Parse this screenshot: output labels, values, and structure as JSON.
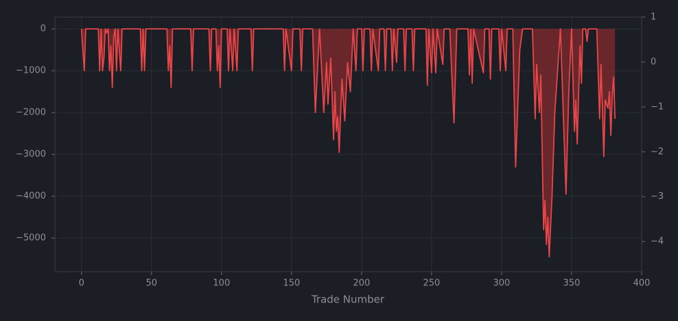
{
  "chart_data": {
    "type": "area",
    "x_label": "Trade Number",
    "color": "#e8474a",
    "fill_color": "#8a2a2e",
    "grid": true,
    "xlim": [
      -19,
      400
    ],
    "xticks": [
      0,
      50,
      100,
      150,
      200,
      250,
      300,
      350,
      400
    ],
    "ylim": [
      -5800,
      280
    ],
    "yticks": [
      {
        "value": 0,
        "label": "0"
      },
      {
        "value": -1000,
        "label": "−1000"
      },
      {
        "value": -2000,
        "label": "−2000"
      },
      {
        "value": -3000,
        "label": "−3000"
      },
      {
        "value": -4000,
        "label": "−4000"
      },
      {
        "value": -5000,
        "label": "−5000"
      }
    ],
    "y2lim": [
      -4.67,
      1
    ],
    "y2ticks": [
      1,
      0,
      {
        "value": -1,
        "label": "−1"
      },
      {
        "value": -2,
        "label": "−2"
      },
      {
        "value": -3,
        "label": "−3"
      },
      {
        "value": -4,
        "label": "−4"
      }
    ],
    "x": [
      0,
      2,
      3,
      12,
      13,
      14,
      15,
      16,
      17,
      18,
      19,
      20,
      21,
      22,
      23,
      24,
      25,
      26,
      28,
      29,
      42,
      43,
      44,
      45,
      46,
      61,
      62,
      63,
      64,
      65,
      78,
      79,
      80,
      91,
      92,
      93,
      96,
      97,
      98,
      99,
      100,
      104,
      105,
      106,
      108,
      109,
      111,
      112,
      121,
      122,
      123,
      144,
      145,
      146,
      150,
      151,
      156,
      157,
      158,
      165,
      167,
      170,
      173,
      175,
      176,
      178,
      180,
      181,
      182,
      183,
      184,
      186,
      188,
      190,
      192,
      194,
      196,
      197,
      200,
      201,
      202,
      206,
      207,
      208,
      212,
      213,
      216,
      217,
      218,
      221,
      222,
      223,
      225,
      226,
      230,
      231,
      232,
      236,
      237,
      238,
      246,
      247,
      248,
      250,
      251,
      253,
      254,
      258,
      259,
      263,
      266,
      268,
      276,
      277,
      278,
      279,
      280,
      287,
      288,
      291,
      292,
      293,
      298,
      299,
      300,
      303,
      304,
      308,
      310,
      313,
      315,
      322,
      324,
      325,
      327,
      328,
      330,
      331,
      332,
      333,
      334,
      336,
      338,
      342,
      346,
      348,
      350,
      352,
      353,
      354,
      356,
      357,
      358,
      360,
      361,
      362,
      368,
      370,
      371,
      373,
      374,
      376,
      377,
      378,
      379,
      380,
      381
    ],
    "values": [
      0,
      -1000,
      0,
      0,
      -1000,
      0,
      -1000,
      -700,
      0,
      -100,
      0,
      -1000,
      -400,
      -1400,
      -200,
      0,
      -1000,
      0,
      -1000,
      0,
      0,
      -1000,
      0,
      -1000,
      0,
      0,
      -1000,
      -400,
      -1400,
      0,
      0,
      -1000,
      0,
      0,
      -1000,
      0,
      0,
      -1000,
      -400,
      -1400,
      0,
      0,
      -1000,
      0,
      -1000,
      0,
      -1000,
      0,
      0,
      -1000,
      0,
      0,
      -1000,
      0,
      -1000,
      0,
      0,
      -1000,
      0,
      0,
      -2000,
      0,
      -2000,
      -800,
      -1800,
      -700,
      -2650,
      -1500,
      -2450,
      -2100,
      -2950,
      -1200,
      -2200,
      -800,
      -1500,
      0,
      -1000,
      0,
      0,
      -1000,
      0,
      0,
      -1000,
      0,
      -1000,
      0,
      0,
      -1000,
      0,
      0,
      -1000,
      0,
      -800,
      0,
      0,
      -1000,
      0,
      0,
      -1000,
      0,
      0,
      -1350,
      0,
      -1050,
      0,
      -1050,
      0,
      -850,
      0,
      0,
      -2250,
      0,
      0,
      -1100,
      0,
      -1300,
      0,
      -1050,
      0,
      0,
      -1200,
      0,
      0,
      -1000,
      0,
      -1000,
      0,
      0,
      -3300,
      -500,
      0,
      0,
      -2150,
      -850,
      -2000,
      -1100,
      -4800,
      -4100,
      -5150,
      -4500,
      -5450,
      -4000,
      -2000,
      0,
      -3950,
      -1500,
      0,
      -2450,
      -1700,
      -2750,
      -400,
      -1300,
      0,
      0,
      -300,
      0,
      0,
      -2150,
      -850,
      -3050,
      -1700,
      -1900,
      -1500,
      -2550,
      -1600,
      -1150,
      -2150
    ]
  }
}
